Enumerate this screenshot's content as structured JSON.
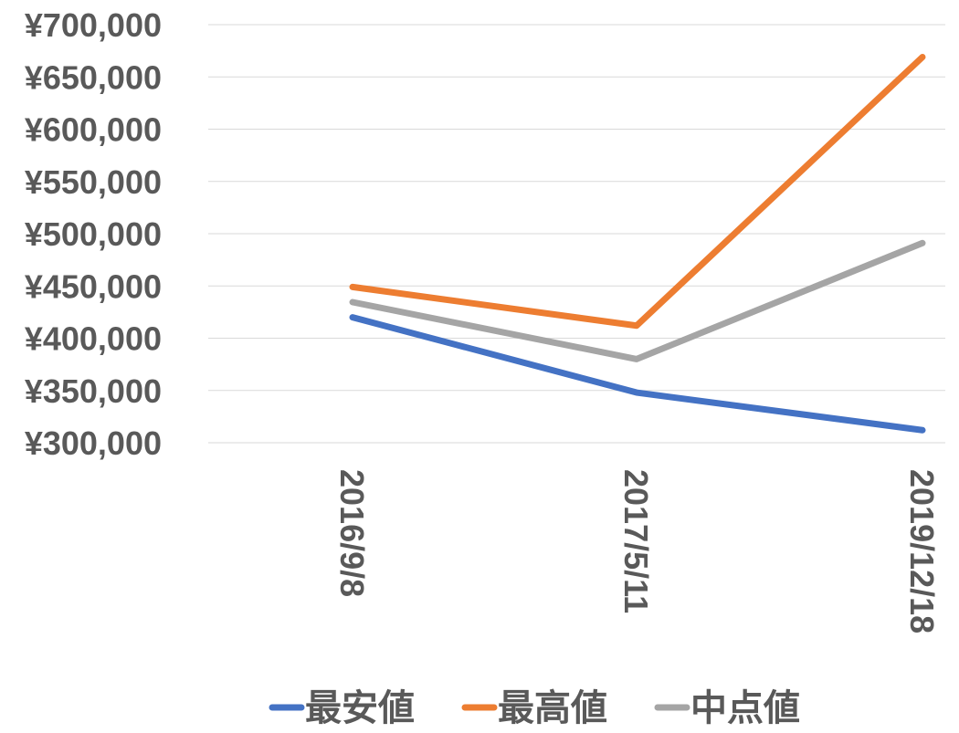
{
  "chart_data": {
    "type": "line",
    "categories": [
      "2016/9/8",
      "2017/5/11",
      "2019/12/18"
    ],
    "series": [
      {
        "name": "最安値",
        "color": "#4472C4",
        "values": [
          420000,
          348000,
          312000
        ]
      },
      {
        "name": "最高値",
        "color": "#ED7D31",
        "values": [
          449000,
          412000,
          669000
        ]
      },
      {
        "name": "中点値",
        "color": "#A5A5A5",
        "values": [
          434500,
          380000,
          491000
        ]
      }
    ],
    "title": "",
    "xlabel": "",
    "ylabel": "",
    "ylim": [
      300000,
      700000
    ],
    "yticks": [
      "¥300,000",
      "¥350,000",
      "¥400,000",
      "¥450,000",
      "¥500,000",
      "¥550,000",
      "¥600,000",
      "¥650,000",
      "¥700,000"
    ],
    "ytick_values": [
      300000,
      350000,
      400000,
      450000,
      500000,
      550000,
      600000,
      650000,
      700000
    ],
    "grid": true,
    "legend_position": "bottom"
  }
}
